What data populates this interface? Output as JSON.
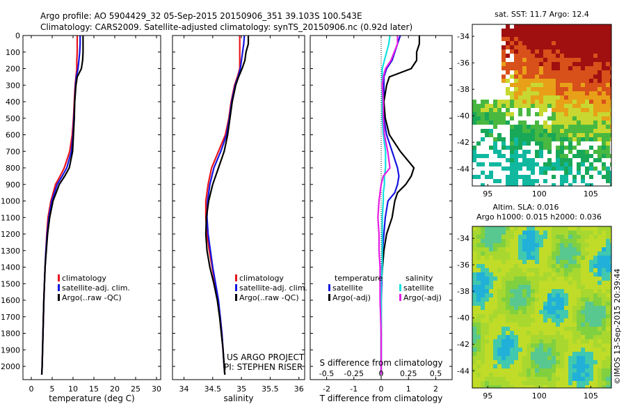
{
  "header": {
    "line1": "Argo profile: AO 5904429_32 05-Sep-2015 20150906_351 39.103S 100.543E",
    "line2": "Climatology: CARS2009. Satellite-adjusted climatology: synTS_20150906.nc (0.92d later)"
  },
  "credit": {
    "line1": "US ARGO PROJECT",
    "line2": "PI: STEPHEN RISER"
  },
  "footer_stamp": "©IMOS 13-Sep-2015 20:39:44",
  "colors": {
    "climatology": "#e8141c",
    "satellite": "#1414e0",
    "argo": "#000000",
    "sal_satellite": "#12e0e0",
    "sal_argo": "#e41ee4"
  },
  "legend_temp": {
    "climatology": "climatology",
    "satellite": "satellite-adj. clim.",
    "argo": "Argo(..raw -QC)"
  },
  "legend_sal": {
    "climatology": "climatology",
    "satellite": "satellite-adj. clim.",
    "argo": "Argo(..raw -QC)"
  },
  "legend_diff": {
    "temperature_title": "temperature",
    "salinity_title": "salinity",
    "t_satellite": "satellite",
    "t_argo": "Argo(-adj)",
    "s_satellite": "satellite",
    "s_argo": "Argo(-adj)"
  },
  "map_top": {
    "title": "sat. SST: 11.7  Argo: 12.4"
  },
  "map_bottom": {
    "title1": "Altim. SLA: 0.016",
    "title2": "Argo h1000: 0.015 h2000: 0.036"
  },
  "chart_data": [
    {
      "type": "line",
      "panel": "temperature",
      "xlabel": "temperature (deg C)",
      "ylabel": "",
      "xlim": [
        -2,
        31
      ],
      "ylim": [
        2080,
        0
      ],
      "xticks": [
        0,
        5,
        10,
        15,
        20,
        25,
        30
      ],
      "yticks": [
        0,
        100,
        200,
        300,
        400,
        500,
        600,
        700,
        800,
        900,
        1000,
        1100,
        1200,
        1300,
        1400,
        1500,
        1600,
        1700,
        1800,
        1900,
        2000
      ],
      "depth": [
        0,
        50,
        100,
        150,
        200,
        250,
        300,
        400,
        500,
        600,
        700,
        800,
        850,
        900,
        1000,
        1100,
        1200,
        1300,
        1400,
        1600,
        1800,
        2000,
        2050
      ],
      "series": [
        {
          "name": "climatology",
          "values": [
            11.0,
            11.0,
            11.0,
            10.9,
            10.9,
            10.7,
            10.5,
            10.3,
            10.1,
            9.8,
            9.2,
            7.9,
            6.9,
            5.8,
            4.7,
            4.0,
            3.7,
            3.5,
            3.3,
            3.0,
            2.8,
            2.6,
            2.5
          ]
        },
        {
          "name": "satellite-adj. clim.",
          "values": [
            11.7,
            11.7,
            11.6,
            11.4,
            11.2,
            10.8,
            10.6,
            10.4,
            10.2,
            10.0,
            9.6,
            8.5,
            7.4,
            6.2,
            4.9,
            4.2,
            3.8,
            3.5,
            3.3,
            3.0,
            2.8,
            2.6,
            2.5
          ]
        },
        {
          "name": "Argo(..raw -QC)",
          "values": [
            12.4,
            12.4,
            12.4,
            12.3,
            12.0,
            11.0,
            10.7,
            10.4,
            10.3,
            10.1,
            9.9,
            9.1,
            8.0,
            6.7,
            5.2,
            4.4,
            3.9,
            3.6,
            3.3,
            3.0,
            2.8,
            2.6,
            2.5
          ]
        }
      ]
    },
    {
      "type": "line",
      "panel": "salinity",
      "xlabel": "salinity",
      "ylabel": "",
      "xlim": [
        33.8,
        36.1
      ],
      "ylim": [
        2080,
        0
      ],
      "xticks": [
        34,
        34.5,
        35,
        35.5,
        36
      ],
      "depth": [
        0,
        50,
        100,
        150,
        200,
        250,
        300,
        400,
        500,
        600,
        700,
        800,
        900,
        1000,
        1100,
        1200,
        1300,
        1400,
        1500,
        1600,
        1700,
        1800,
        1900,
        2000,
        2050
      ],
      "series": [
        {
          "name": "climatology",
          "values": [
            34.97,
            34.97,
            34.97,
            34.97,
            34.97,
            34.93,
            34.88,
            34.82,
            34.78,
            34.72,
            34.6,
            34.48,
            34.42,
            34.38,
            34.38,
            34.4,
            34.44,
            34.49,
            34.54,
            34.59,
            34.63,
            34.66,
            34.68,
            34.7,
            34.71
          ]
        },
        {
          "name": "satellite-adj. clim.",
          "values": [
            35.05,
            35.04,
            35.02,
            35.0,
            34.98,
            34.94,
            34.89,
            34.83,
            34.79,
            34.74,
            34.64,
            34.52,
            34.45,
            34.41,
            34.4,
            34.42,
            34.46,
            34.5,
            34.55,
            34.6,
            34.63,
            34.66,
            34.68,
            34.7,
            34.71
          ]
        },
        {
          "name": "Argo(..raw -QC)",
          "values": [
            35.12,
            35.12,
            35.08,
            35.06,
            35.01,
            34.95,
            34.9,
            34.84,
            34.8,
            34.76,
            34.7,
            34.6,
            34.5,
            34.43,
            34.39,
            34.38,
            34.4,
            34.45,
            34.52,
            34.58,
            34.62,
            34.65,
            34.68,
            34.7,
            34.71
          ]
        }
      ]
    },
    {
      "type": "line",
      "panel": "difference",
      "xlabel": "T difference from climatology",
      "xlabel_top": "S difference from climatology",
      "xlim": [
        -2.6,
        2.6
      ],
      "ylim": [
        2080,
        0
      ],
      "xticks": [
        -2,
        -1,
        0,
        1,
        2
      ],
      "xtick_labels": [
        "-2",
        "-1",
        "0",
        "1",
        "2"
      ],
      "xticks_top": [
        -0.5,
        -0.25,
        0,
        0.25,
        0.5
      ],
      "xtick_labels_top": [
        "-0.5",
        "-0.25",
        "0",
        "0.25",
        "0.5"
      ],
      "depth": [
        0,
        50,
        100,
        150,
        200,
        250,
        300,
        400,
        500,
        600,
        700,
        800,
        850,
        900,
        950,
        1000,
        1100,
        1200,
        1300,
        1400,
        1500,
        1600,
        1800,
        2000,
        2050
      ],
      "series": [
        {
          "name": "satellite",
          "quantity": "temperature",
          "values": [
            0.7,
            0.6,
            0.5,
            0.4,
            0.2,
            0.1,
            0.1,
            0.1,
            0.1,
            0.2,
            0.4,
            0.6,
            0.65,
            0.6,
            0.5,
            0.25,
            0.15,
            0.1,
            0.05,
            0.03,
            0.02,
            0.0,
            0.0,
            0.0,
            0.0
          ]
        },
        {
          "name": "Argo(-adj)",
          "quantity": "temperature",
          "values": [
            1.4,
            1.4,
            1.3,
            1.3,
            1.1,
            0.3,
            0.2,
            0.1,
            0.15,
            0.3,
            0.7,
            1.2,
            1.1,
            0.9,
            0.6,
            0.5,
            0.4,
            0.2,
            0.1,
            0.05,
            0.0,
            0.0,
            0.0,
            0.0,
            0.0
          ]
        },
        {
          "name": "satellite",
          "quantity": "salinity",
          "values": [
            0.08,
            0.07,
            0.05,
            0.03,
            0.01,
            0.01,
            0.01,
            0.01,
            0.01,
            0.02,
            0.04,
            0.04,
            0.03,
            0.03,
            0.02,
            0.02,
            0.01,
            0.01,
            0.01,
            0.01,
            0.0,
            0.0,
            0.0,
            0.0,
            0.0
          ]
        },
        {
          "name": "Argo(-adj)",
          "quantity": "salinity",
          "values": [
            0.15,
            0.15,
            0.12,
            0.09,
            0.04,
            0.02,
            0.01,
            0.02,
            0.02,
            0.03,
            0.06,
            0.08,
            0.02,
            0.0,
            -0.01,
            -0.02,
            -0.03,
            -0.02,
            -0.02,
            -0.01,
            -0.01,
            -0.01,
            0.0,
            0.0,
            0.0
          ]
        }
      ]
    },
    {
      "type": "heatmap",
      "panel": "sst-map",
      "title": "sat. SST: 11.7  Argo: 12.4",
      "xlim": [
        93.5,
        107
      ],
      "ylim": [
        -45.3,
        -33.1
      ],
      "xticks": [
        95,
        100,
        105
      ],
      "yticks": [
        -34,
        -36,
        -38,
        -40,
        -42,
        -44
      ]
    },
    {
      "type": "heatmap",
      "panel": "sla-map",
      "title": "Altim. SLA: 0.016  Argo h1000: 0.015 h2000: 0.036",
      "xlim": [
        93.5,
        107
      ],
      "ylim": [
        -45.3,
        -33.1
      ],
      "xticks": [
        95,
        100,
        105
      ],
      "yticks": [
        -34,
        -36,
        -38,
        -40,
        -42,
        -44
      ]
    }
  ]
}
